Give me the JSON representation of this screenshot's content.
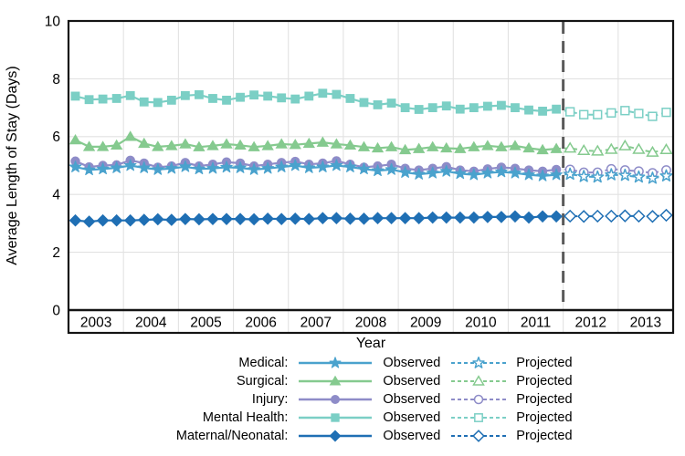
{
  "chart_data": {
    "type": "line",
    "title": "",
    "xlabel": "Year",
    "ylabel": "Average Length of Stay (Days)",
    "ylim": [
      0,
      10
    ],
    "yticks": [
      0,
      2,
      4,
      6,
      8,
      10
    ],
    "xtick_labels": [
      "2003",
      "2004",
      "2005",
      "2006",
      "2007",
      "2008",
      "2009",
      "2010",
      "2011",
      "2012",
      "2013"
    ],
    "x_axis_range": [
      2003,
      2014
    ],
    "x_start": 2003.125,
    "x_step": 0.25,
    "projection_divider_x": 2012,
    "grid": true,
    "legend": {
      "position": "bottom",
      "observed_label": "Observed",
      "projected_label": "Projected"
    },
    "colors": {
      "grid": "#e2e2e2",
      "frame": "#141414",
      "divider": "#5a5a5a",
      "background": "#ffffff",
      "text": "#000000"
    },
    "series": [
      {
        "name": "Medical",
        "legend_label": "Medical:",
        "marker": "star",
        "color": "#4aa2cd",
        "observed": [
          4.95,
          4.85,
          4.88,
          4.92,
          5.0,
          4.92,
          4.86,
          4.9,
          4.96,
          4.88,
          4.9,
          4.94,
          4.92,
          4.86,
          4.9,
          4.95,
          5.0,
          4.92,
          4.95,
          5.0,
          4.95,
          4.88,
          4.82,
          4.86,
          4.76,
          4.7,
          4.74,
          4.8,
          4.72,
          4.68,
          4.74,
          4.78,
          4.74,
          4.68,
          4.64,
          4.68
        ],
        "projected": [
          4.7,
          4.62,
          4.6,
          4.68,
          4.66,
          4.6,
          4.56,
          4.64
        ]
      },
      {
        "name": "Surgical",
        "legend_label": "Surgical:",
        "marker": "triangle",
        "color": "#85ca8f",
        "observed": [
          5.88,
          5.65,
          5.65,
          5.7,
          6.0,
          5.76,
          5.65,
          5.68,
          5.74,
          5.64,
          5.68,
          5.74,
          5.7,
          5.64,
          5.68,
          5.74,
          5.72,
          5.76,
          5.8,
          5.74,
          5.7,
          5.64,
          5.6,
          5.64,
          5.54,
          5.58,
          5.64,
          5.6,
          5.58,
          5.64,
          5.68,
          5.64,
          5.68,
          5.6,
          5.54,
          5.58
        ],
        "projected": [
          5.6,
          5.52,
          5.5,
          5.56,
          5.68,
          5.56,
          5.46,
          5.55
        ]
      },
      {
        "name": "Injury",
        "legend_label": "Injury:",
        "marker": "circle",
        "color": "#8e8cc8",
        "observed": [
          5.15,
          4.95,
          5.0,
          5.02,
          5.18,
          5.08,
          4.94,
          4.98,
          5.1,
          4.98,
          5.04,
          5.12,
          5.08,
          4.98,
          5.04,
          5.1,
          5.14,
          5.04,
          5.08,
          5.16,
          5.04,
          4.94,
          4.98,
          5.04,
          4.9,
          4.84,
          4.9,
          4.96,
          4.84,
          4.8,
          4.88,
          4.94,
          4.9,
          4.84,
          4.8,
          4.86
        ],
        "projected": [
          4.86,
          4.76,
          4.76,
          4.88,
          4.84,
          4.8,
          4.74,
          4.84
        ]
      },
      {
        "name": "Mental Health",
        "legend_label": "Mental Health:",
        "marker": "square",
        "color": "#7bcfc5",
        "observed": [
          7.4,
          7.28,
          7.3,
          7.32,
          7.42,
          7.2,
          7.18,
          7.26,
          7.42,
          7.45,
          7.32,
          7.26,
          7.36,
          7.44,
          7.4,
          7.34,
          7.3,
          7.4,
          7.5,
          7.46,
          7.32,
          7.18,
          7.1,
          7.16,
          7.0,
          6.94,
          7.0,
          7.06,
          6.95,
          7.0,
          7.05,
          7.08,
          7.0,
          6.92,
          6.88,
          6.95
        ],
        "projected": [
          6.86,
          6.76,
          6.76,
          6.82,
          6.9,
          6.8,
          6.7,
          6.84
        ]
      },
      {
        "name": "Maternal/Neonatal",
        "legend_label": "Maternal/Neonatal:",
        "marker": "diamond",
        "color": "#1f6fb4",
        "observed": [
          3.1,
          3.06,
          3.1,
          3.1,
          3.1,
          3.12,
          3.14,
          3.12,
          3.15,
          3.14,
          3.15,
          3.15,
          3.15,
          3.14,
          3.16,
          3.15,
          3.16,
          3.15,
          3.18,
          3.18,
          3.16,
          3.16,
          3.18,
          3.18,
          3.18,
          3.18,
          3.2,
          3.2,
          3.2,
          3.2,
          3.22,
          3.22,
          3.24,
          3.2,
          3.24,
          3.24
        ],
        "projected": [
          3.25,
          3.24,
          3.25,
          3.25,
          3.26,
          3.25,
          3.24,
          3.28
        ]
      }
    ]
  }
}
